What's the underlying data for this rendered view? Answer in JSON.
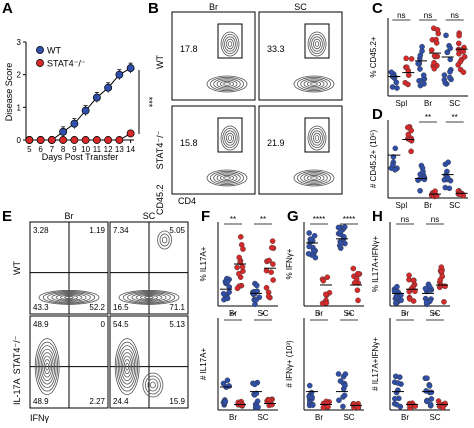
{
  "panels": {
    "A": "A",
    "B": "B",
    "C": "C",
    "D": "D",
    "E": "E",
    "F": "F",
    "G": "G",
    "H": "H"
  },
  "colors": {
    "wt": "#2f4fa8",
    "stat4": "#d62a2a",
    "contour": "#555555"
  },
  "panelA": {
    "legend": [
      "WT",
      "STAT4⁻/⁻"
    ],
    "ylabel": "Disease Score",
    "xlabel": "Days Post Transfer",
    "xticks": [
      "5",
      "6",
      "7",
      "8",
      "9",
      "10",
      "11",
      "12",
      "13",
      "14"
    ],
    "yticks": [
      "0",
      "1",
      "2",
      "3"
    ],
    "signif": "***"
  },
  "chart_data": [
    {
      "type": "line",
      "panel": "A",
      "ylabel": "Disease Score",
      "xlabel": "Days Post Transfer",
      "x": [
        5,
        6,
        7,
        8,
        9,
        10,
        11,
        12,
        13,
        14
      ],
      "ylim": [
        0,
        3
      ],
      "series": [
        {
          "name": "WT",
          "values": [
            0,
            0,
            0,
            0.25,
            0.5,
            0.9,
            1.3,
            1.6,
            2.0,
            2.2
          ]
        },
        {
          "name": "STAT4⁻/⁻",
          "values": [
            0,
            0,
            0,
            0,
            0,
            0,
            0,
            0,
            0,
            0.2
          ]
        }
      ]
    },
    {
      "type": "scatter",
      "panel": "C",
      "ylabel": "% CD45.2+",
      "categories": [
        "Spl",
        "Br",
        "SC"
      ],
      "annotations": [
        "ns",
        "ns",
        "ns"
      ]
    },
    {
      "type": "scatter",
      "panel": "D",
      "ylabel": "# CD45.2+ (10⁵)",
      "categories": [
        "Spl",
        "Br",
        "SC"
      ],
      "annotations": [
        "**",
        "**"
      ]
    },
    {
      "type": "scatter",
      "panel": "F-top",
      "ylabel": "% IL17A+",
      "categories": [
        "Br",
        "SC"
      ],
      "annotations": [
        "**",
        "**"
      ]
    },
    {
      "type": "scatter",
      "panel": "F-bottom",
      "ylabel": "# IL17A+",
      "categories": [
        "Br",
        "SC"
      ],
      "annotations": [
        "**",
        "*"
      ]
    },
    {
      "type": "scatter",
      "panel": "G-top",
      "ylabel": "% IFNγ+",
      "categories": [
        "Br",
        "SC"
      ],
      "annotations": [
        "****",
        "****"
      ]
    },
    {
      "type": "scatter",
      "panel": "G-bottom",
      "ylabel": "# IFNγ+ (10³)",
      "categories": [
        "Br",
        "SC"
      ],
      "annotations": [
        "*",
        "**"
      ]
    },
    {
      "type": "scatter",
      "panel": "H-top",
      "ylabel": "% IL17A+IFNγ+",
      "categories": [
        "Br",
        "SC"
      ],
      "annotations": [
        "ns",
        "ns"
      ]
    },
    {
      "type": "scatter",
      "panel": "H-bottom",
      "ylabel": "# IL17A+IFNγ+",
      "categories": [
        "Br",
        "SC"
      ],
      "annotations": [
        "*",
        "**"
      ]
    }
  ],
  "panelB": {
    "col_headers": [
      "Br",
      "SC"
    ],
    "row_labels": [
      "WT",
      "STAT4⁻/⁻"
    ],
    "ylabel": "CD45.2",
    "xlabel": "CD4",
    "values": [
      "17.8",
      "33.3",
      "15.8",
      "21.9"
    ]
  },
  "panelE": {
    "col_headers": [
      "Br",
      "SC"
    ],
    "row_labels": [
      "WT",
      "STAT4⁻/⁻"
    ],
    "ylabel": "IL-17A",
    "xlabel": "IFNγ",
    "quadrants": [
      [
        "3.28",
        "1.19",
        "43.3",
        "52.2"
      ],
      [
        "7.34",
        "5.05",
        "16.5",
        "71.1"
      ],
      [
        "48.9",
        "0",
        "48.9",
        "2.27"
      ],
      [
        "54.5",
        "5.13",
        "24.4",
        "15.9"
      ]
    ]
  },
  "scatterLabels": {
    "C": {
      "ylabel": "% CD45.2+",
      "cats": [
        "Spl",
        "Br",
        "SC"
      ],
      "sig": [
        "ns",
        "ns",
        "ns"
      ]
    },
    "D": {
      "ylabel": "# CD45.2+ (10⁵)",
      "cats": [
        "Spl",
        "Br",
        "SC"
      ],
      "sig": [
        "**",
        "**"
      ]
    },
    "F1": {
      "ylabel": "% IL17A+",
      "cats": [
        "Br",
        "SC"
      ],
      "sig": [
        "**",
        "**"
      ]
    },
    "F2": {
      "ylabel": "# IL17A+",
      "cats": [
        "Br",
        "SC"
      ],
      "sig": [
        "**",
        "*"
      ]
    },
    "G1": {
      "ylabel": "% IFNγ+",
      "cats": [
        "Br",
        "SC"
      ],
      "sig": [
        "****",
        "****"
      ]
    },
    "G2": {
      "ylabel": "# IFNγ+ (10³)",
      "cats": [
        "Br",
        "SC"
      ],
      "sig": [
        "*",
        "**"
      ]
    },
    "H1": {
      "ylabel": "% IL17A+IFNγ+",
      "cats": [
        "Br",
        "SC"
      ],
      "sig": [
        "ns",
        "ns"
      ]
    },
    "H2": {
      "ylabel": "# IL17A+IFNγ+",
      "cats": [
        "Br",
        "SC"
      ],
      "sig": [
        "*",
        "**"
      ]
    }
  }
}
